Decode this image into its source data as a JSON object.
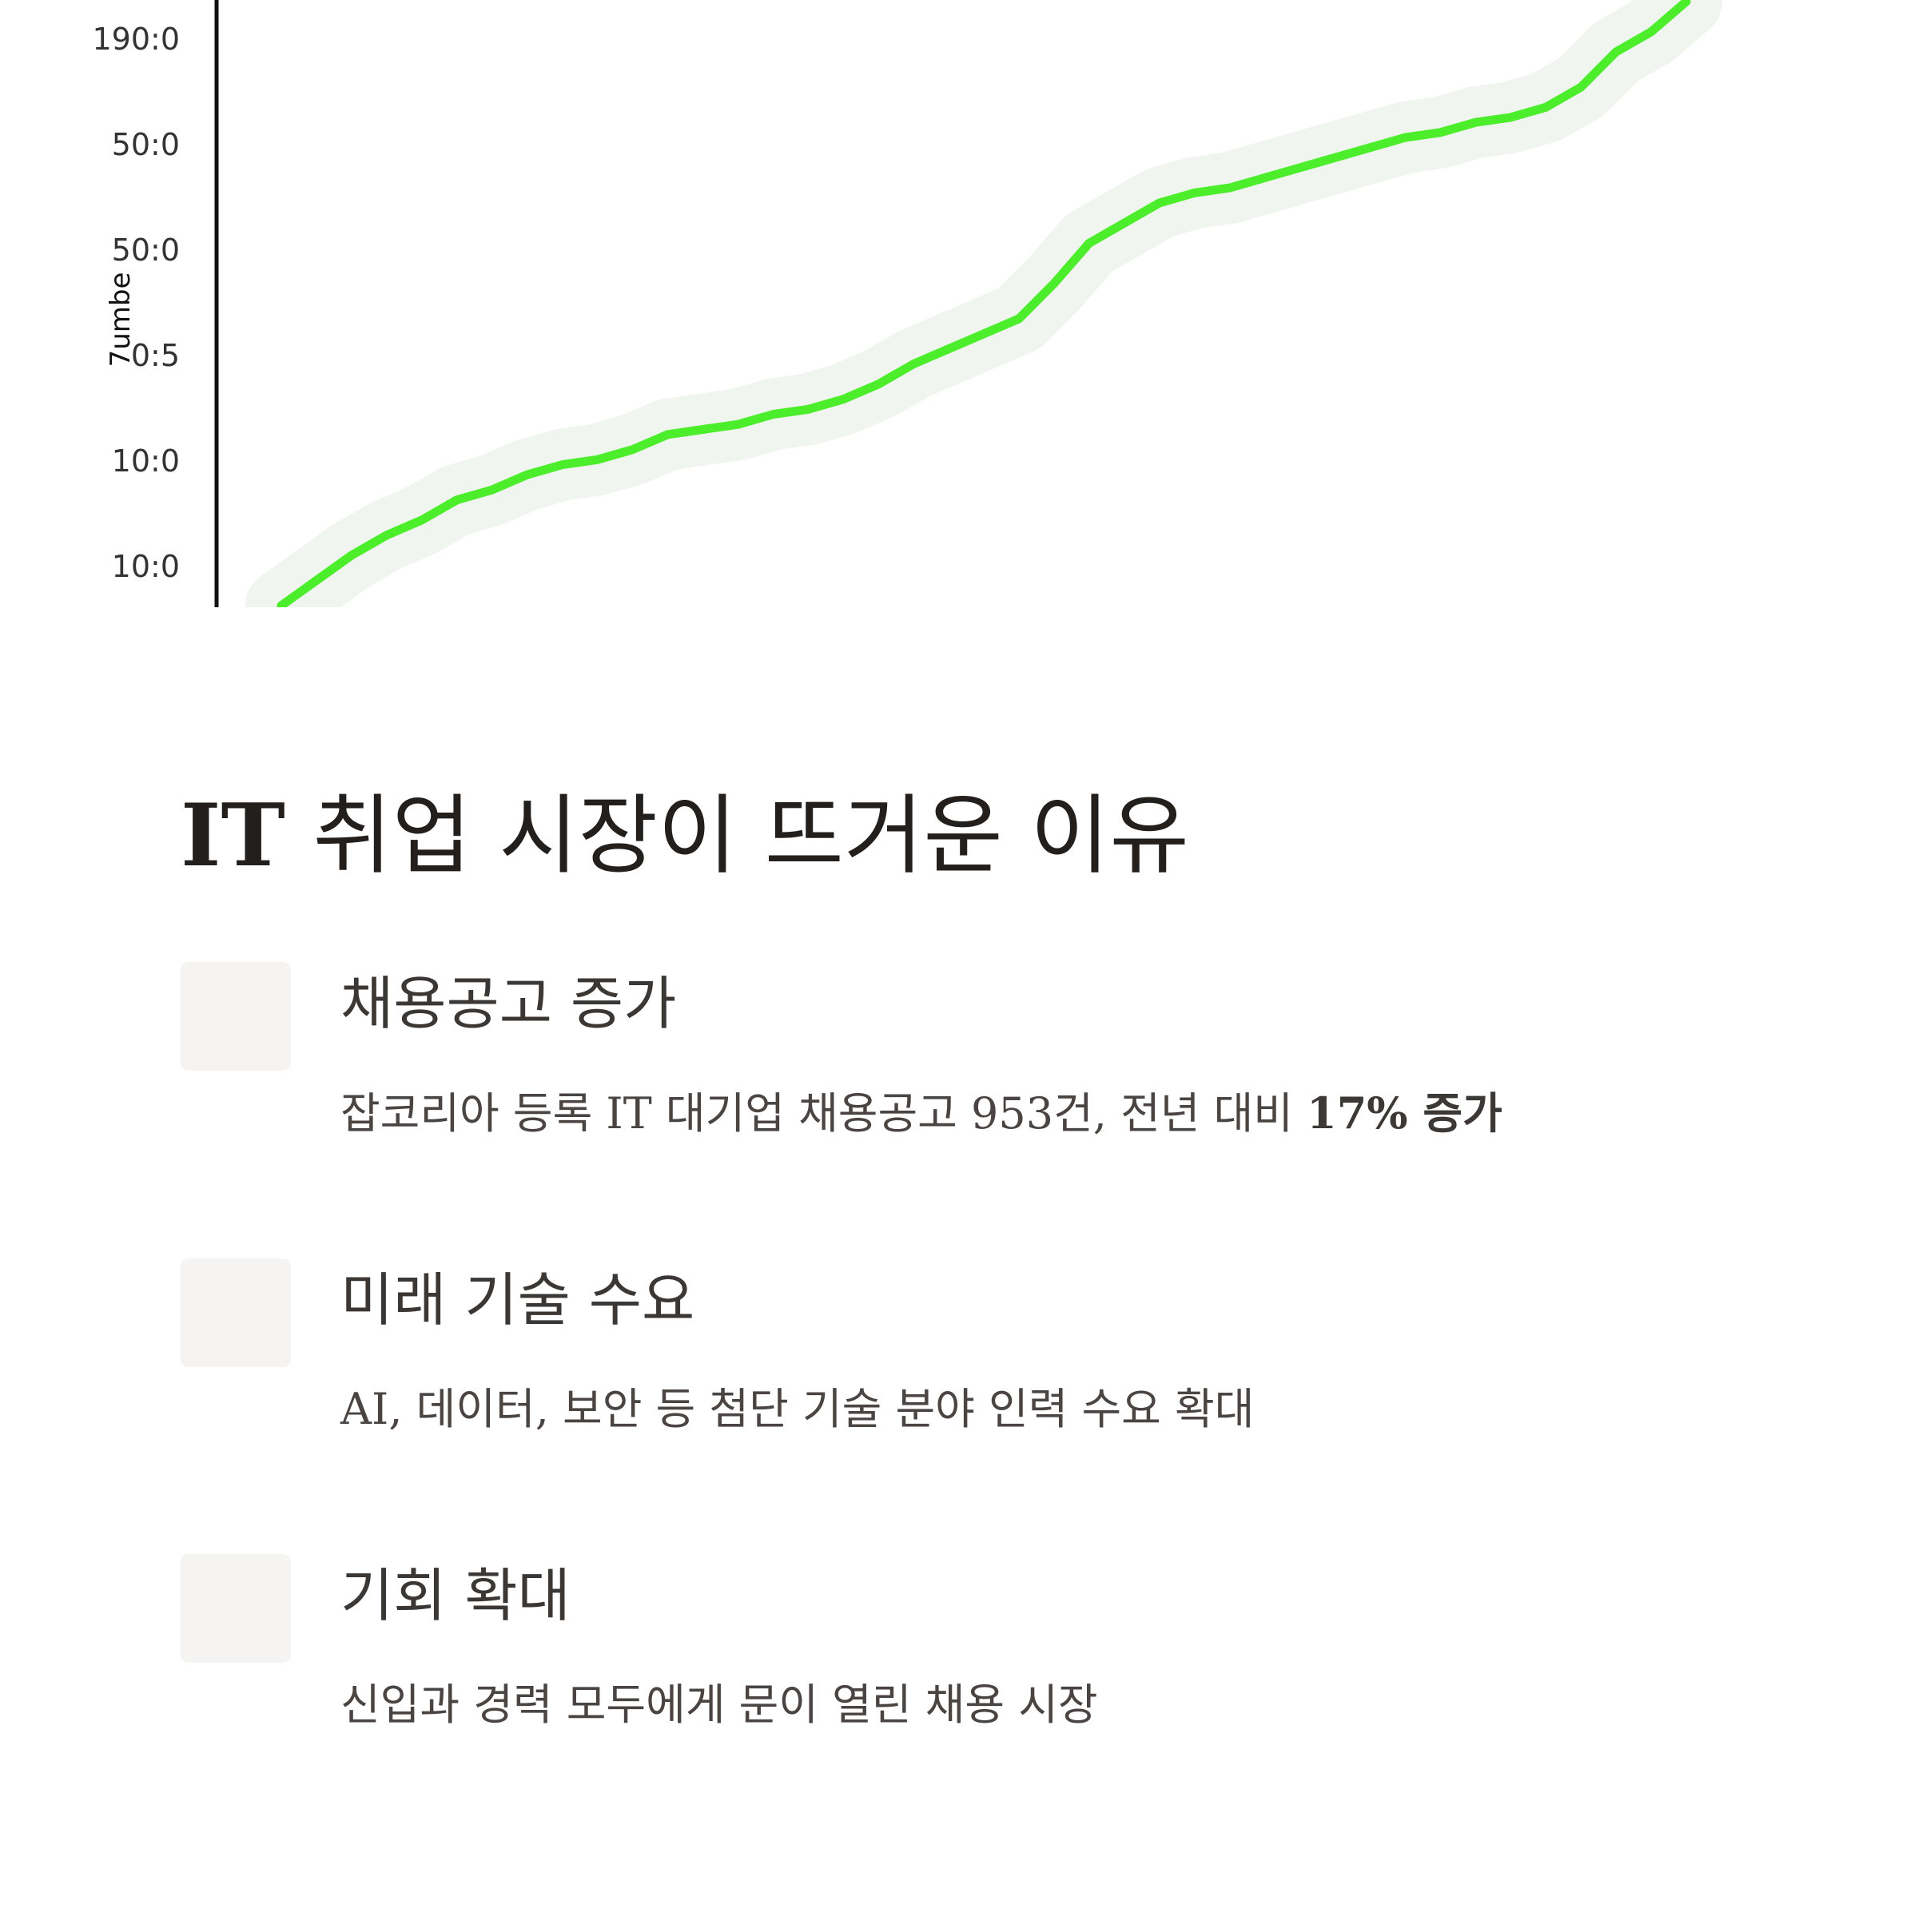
{
  "chart_data": {
    "type": "line",
    "ylabel": "7umbe",
    "y_tick_labels": [
      "190:0",
      "50:0",
      "50:0",
      "0:5",
      "10:0",
      "10:0"
    ],
    "grid": false,
    "series_color": "#4cee2c",
    "y_values_relative": [
      0.0,
      0.05,
      0.1,
      0.14,
      0.17,
      0.21,
      0.23,
      0.26,
      0.28,
      0.29,
      0.31,
      0.34,
      0.35,
      0.36,
      0.38,
      0.39,
      0.41,
      0.44,
      0.48,
      0.51,
      0.54,
      0.57,
      0.64,
      0.72,
      0.76,
      0.8,
      0.82,
      0.83,
      0.85,
      0.87,
      0.89,
      0.91,
      0.93,
      0.94,
      0.96,
      0.97,
      0.99,
      1.03,
      1.1,
      1.14,
      1.2
    ]
  },
  "section": {
    "title_latin": "IT",
    "title_rest": " 취업 시장이 뜨거운 이유"
  },
  "items": [
    {
      "title": "채용공고 증가",
      "desc_plain": "잡코리아 등록 IT 대기업 채용공고 953건, 전년 대비 ",
      "desc_bold": "17% 증가"
    },
    {
      "title": "미래 기술 수요",
      "desc_plain": "AI, 데이터, 보안 등 첨단 기술 분야 인력 수요 확대",
      "desc_bold": ""
    },
    {
      "title": "기회 확대",
      "desc_plain": "신입과 경력 모두에게 문이 열린 채용 시장",
      "desc_bold": ""
    }
  ]
}
